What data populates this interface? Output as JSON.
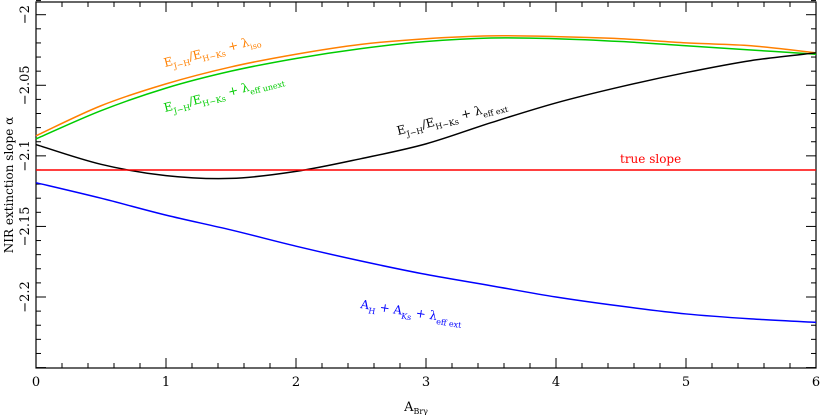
{
  "chart_data": {
    "type": "line",
    "title": "",
    "xlabel": {
      "main": "A",
      "sub": "Brγ"
    },
    "ylabel": "NIR extinction slope α",
    "xlim": [
      0,
      6
    ],
    "ylim": [
      -2.2503,
      -1.991
    ],
    "xticks": [
      "0",
      "1",
      "2",
      "3",
      "4",
      "5",
      "6"
    ],
    "yticks": [
      {
        "v": -2,
        "label": "−2"
      },
      {
        "v": -2.05,
        "label": "−2.05"
      },
      {
        "v": -2.1,
        "label": "−2.1"
      },
      {
        "v": -2.15,
        "label": "−2.15"
      },
      {
        "v": -2.2,
        "label": "−2.2"
      }
    ],
    "grid": false,
    "x": [
      0,
      0.5,
      1,
      1.5,
      2,
      2.5,
      3,
      3.5,
      4,
      4.5,
      5,
      5.5,
      6
    ],
    "series": [
      {
        "id": "orange",
        "color": "#ff8000",
        "values": [
          -2.0858,
          -2.0645,
          -2.049,
          -2.037,
          -2.028,
          -2.021,
          -2.017,
          -2.015,
          -2.0155,
          -2.017,
          -2.02,
          -2.022,
          -2.027
        ],
        "label": [
          {
            "t": "E"
          },
          {
            "t": "J−H",
            "s": 1
          },
          {
            "t": "/E"
          },
          {
            "t": "H−Ks",
            "s": 1
          },
          {
            "t": " + λ"
          },
          {
            "t": "iso",
            "s": 1
          }
        ]
      },
      {
        "id": "green",
        "color": "#00cc00",
        "values": [
          -2.088,
          -2.068,
          -2.052,
          -2.04,
          -2.031,
          -2.024,
          -2.019,
          -2.0165,
          -2.017,
          -2.019,
          -2.022,
          -2.025,
          -2.028
        ],
        "label": [
          {
            "t": "E"
          },
          {
            "t": "J−H",
            "s": 1
          },
          {
            "t": "/E"
          },
          {
            "t": "H−Ks",
            "s": 1
          },
          {
            "t": " + λ"
          },
          {
            "t": "eff unext",
            "s": 1
          }
        ]
      },
      {
        "id": "black",
        "color": "#000000",
        "values": [
          -2.092,
          -2.106,
          -2.114,
          -2.116,
          -2.111,
          -2.102,
          -2.0915,
          -2.0765,
          -2.0625,
          -2.051,
          -2.041,
          -2.0325,
          -2.027
        ],
        "label": [
          {
            "t": "E"
          },
          {
            "t": "J−H",
            "s": 1
          },
          {
            "t": "/E"
          },
          {
            "t": "H−Ks",
            "s": 1
          },
          {
            "t": " + λ"
          },
          {
            "t": "eff ext",
            "s": 1
          }
        ]
      },
      {
        "id": "red",
        "color": "#ff0000",
        "values": [
          -2.11,
          -2.11,
          -2.11,
          -2.11,
          -2.11,
          -2.11,
          -2.11,
          -2.11,
          -2.11,
          -2.11,
          -2.11,
          -2.11,
          -2.11
        ],
        "label": [
          {
            "t": "true slope"
          }
        ]
      },
      {
        "id": "blue",
        "color": "#0000ff",
        "values": [
          -2.119,
          -2.13,
          -2.142,
          -2.1525,
          -2.164,
          -2.1745,
          -2.184,
          -2.192,
          -2.2,
          -2.2065,
          -2.212,
          -2.2155,
          -2.218
        ],
        "label": [
          {
            "t": "A"
          },
          {
            "t": "H",
            "s": 1
          },
          {
            "t": " + A"
          },
          {
            "t": "Ks",
            "s": 1
          },
          {
            "t": " + λ"
          },
          {
            "t": "eff ext",
            "s": 1
          }
        ]
      }
    ]
  }
}
